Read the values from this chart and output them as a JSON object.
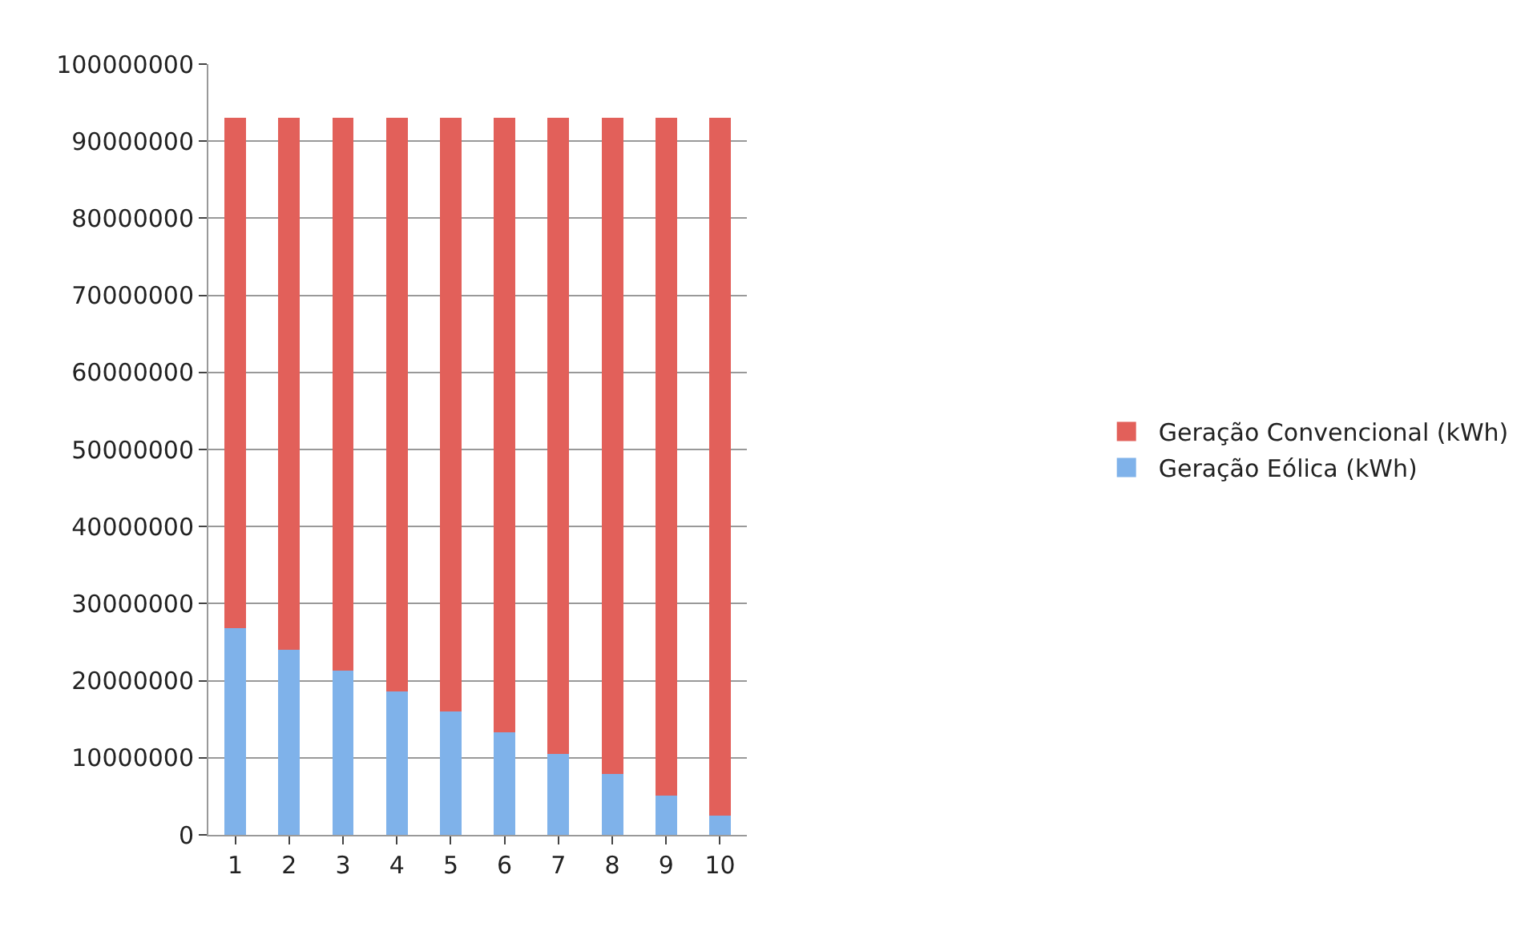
{
  "chart_data": {
    "type": "bar",
    "stacked": true,
    "categories": [
      "1",
      "2",
      "3",
      "4",
      "5",
      "6",
      "7",
      "8",
      "9",
      "10"
    ],
    "series": [
      {
        "name": "Geração Eólica (kWh)",
        "color": "#7fb2ea",
        "values": [
          26800000,
          24000000,
          21300000,
          18600000,
          16000000,
          13300000,
          10500000,
          7900000,
          5100000,
          2500000
        ]
      },
      {
        "name": "Geração Convencional (kWh)",
        "color": "#e2605a",
        "values": [
          66200000,
          69000000,
          71700000,
          74400000,
          77000000,
          79700000,
          82500000,
          85100000,
          87900000,
          90500000
        ]
      }
    ],
    "ylim": [
      0,
      100000000
    ],
    "yticks": [
      0,
      10000000,
      20000000,
      30000000,
      40000000,
      50000000,
      60000000,
      70000000,
      80000000,
      90000000,
      100000000
    ],
    "grid": "y",
    "legend": "right"
  }
}
